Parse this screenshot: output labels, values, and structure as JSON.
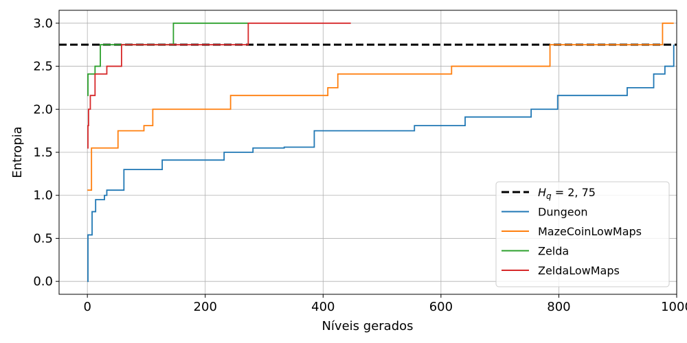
{
  "chart_data": {
    "type": "line",
    "title": "",
    "xlabel": "Níveis gerados",
    "ylabel": "Entropia",
    "xlim": [
      -48,
      1000
    ],
    "ylim": [
      -0.15,
      3.15
    ],
    "x_ticks": [
      0,
      200,
      400,
      600,
      800,
      1000
    ],
    "x_tick_labels": [
      "0",
      "200",
      "400",
      "600",
      "800",
      "1000"
    ],
    "y_ticks": [
      0.0,
      0.5,
      1.0,
      1.5,
      2.0,
      2.5,
      3.0
    ],
    "y_tick_labels": [
      "0.0",
      "0.5",
      "1.0",
      "1.5",
      "2.0",
      "2.5",
      "3.0"
    ],
    "grid": true,
    "legend_position": "lower right",
    "reference_line": {
      "label_prefix": "H",
      "label_subscript": "q",
      "label_suffix": " = 2, 75",
      "y": 2.75,
      "color": "#000000",
      "style": "dashed"
    },
    "series": [
      {
        "name": "Dungeon",
        "color": "#1f77b4",
        "points": [
          [
            0,
            0.0
          ],
          [
            1,
            0.54
          ],
          [
            7,
            0.54
          ],
          [
            8,
            0.81
          ],
          [
            13,
            0.81
          ],
          [
            14,
            0.95
          ],
          [
            28,
            0.95
          ],
          [
            29,
            1.0
          ],
          [
            32,
            1.0
          ],
          [
            33,
            1.06
          ],
          [
            61,
            1.06
          ],
          [
            62,
            1.3
          ],
          [
            126,
            1.3
          ],
          [
            127,
            1.41
          ],
          [
            231,
            1.41
          ],
          [
            232,
            1.5
          ],
          [
            280,
            1.5
          ],
          [
            281,
            1.55
          ],
          [
            333,
            1.55
          ],
          [
            334,
            1.56
          ],
          [
            384,
            1.56
          ],
          [
            385,
            1.75
          ],
          [
            554,
            1.75
          ],
          [
            555,
            1.81
          ],
          [
            640,
            1.81
          ],
          [
            641,
            1.91
          ],
          [
            752,
            1.91
          ],
          [
            753,
            2.0
          ],
          [
            797,
            2.0
          ],
          [
            798,
            2.16
          ],
          [
            915,
            2.16
          ],
          [
            916,
            2.25
          ],
          [
            960,
            2.25
          ],
          [
            961,
            2.41
          ],
          [
            979,
            2.41
          ],
          [
            980,
            2.5
          ],
          [
            994,
            2.5
          ],
          [
            995,
            2.75
          ]
        ]
      },
      {
        "name": "MazeCoinLowMaps",
        "color": "#ff7f0e",
        "points": [
          [
            0,
            1.06
          ],
          [
            5,
            1.06
          ],
          [
            7,
            1.55
          ],
          [
            51,
            1.55
          ],
          [
            52,
            1.75
          ],
          [
            95,
            1.75
          ],
          [
            96,
            1.81
          ],
          [
            110,
            1.81
          ],
          [
            111,
            2.0
          ],
          [
            242,
            2.0
          ],
          [
            243,
            2.16
          ],
          [
            407,
            2.16
          ],
          [
            408,
            2.25
          ],
          [
            424,
            2.25
          ],
          [
            425,
            2.41
          ],
          [
            617,
            2.41
          ],
          [
            618,
            2.5
          ],
          [
            784,
            2.5
          ],
          [
            785,
            2.75
          ],
          [
            974,
            2.75
          ],
          [
            976,
            3.0
          ],
          [
            995,
            3.0
          ]
        ]
      },
      {
        "name": "Zelda",
        "color": "#2ca02c",
        "points": [
          [
            0,
            2.16
          ],
          [
            1,
            2.41
          ],
          [
            12,
            2.41
          ],
          [
            13,
            2.5
          ],
          [
            20,
            2.5
          ],
          [
            22,
            2.75
          ],
          [
            145,
            2.75
          ],
          [
            146,
            3.0
          ],
          [
            272,
            3.0
          ]
        ]
      },
      {
        "name": "ZeldaLowMaps",
        "color": "#d62728",
        "points": [
          [
            0,
            1.55
          ],
          [
            1,
            1.81
          ],
          [
            2,
            2.0
          ],
          [
            4,
            2.0
          ],
          [
            5,
            2.16
          ],
          [
            11,
            2.16
          ],
          [
            13,
            2.41
          ],
          [
            31,
            2.41
          ],
          [
            33,
            2.5
          ],
          [
            56,
            2.5
          ],
          [
            58,
            2.75
          ],
          [
            271,
            2.75
          ],
          [
            273,
            3.0
          ],
          [
            447,
            3.0
          ]
        ]
      }
    ]
  }
}
